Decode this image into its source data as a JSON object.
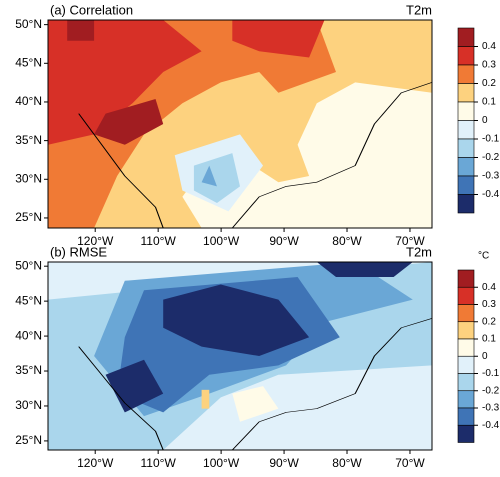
{
  "panels": [
    {
      "title": "(a) Correlation",
      "variable": "T2m",
      "xlim": [
        -127.5,
        -66.5
      ],
      "ylim": [
        23.7,
        50.6
      ],
      "xticks": [
        {
          "value": -120,
          "label": "120°W"
        },
        {
          "value": -110,
          "label": "110°W"
        },
        {
          "value": -100,
          "label": "100°W"
        },
        {
          "value": -90,
          "label": "90°W"
        },
        {
          "value": -80,
          "label": "80°W"
        },
        {
          "value": -70,
          "label": "70°W"
        }
      ],
      "yticks": [
        {
          "value": 25,
          "label": "25°N"
        },
        {
          "value": 30,
          "label": "30°N"
        },
        {
          "value": 35,
          "label": "35°N"
        },
        {
          "value": 40,
          "label": "40°N"
        },
        {
          "value": 45,
          "label": "45°N"
        },
        {
          "value": 50,
          "label": "50°N"
        }
      ],
      "colorbar": {
        "ticks": [
          0.4,
          0.3,
          0.2,
          0.1,
          0,
          -0.1,
          -0.2,
          -0.3,
          -0.4
        ],
        "colors": [
          "#a11d21",
          "#d73027",
          "#f07a35",
          "#fdd27f",
          "#fffbe8",
          "#e1f1fa",
          "#aad6ec",
          "#6aa7d6",
          "#3f74b6",
          "#1c2c6a"
        ]
      }
    },
    {
      "title": "(b) RMSE",
      "variable": "T2m",
      "unit": "°C",
      "xlim": [
        -127.5,
        -66.5
      ],
      "ylim": [
        23.7,
        50.6
      ],
      "xticks": [
        {
          "value": -120,
          "label": "120°W"
        },
        {
          "value": -110,
          "label": "110°W"
        },
        {
          "value": -100,
          "label": "100°W"
        },
        {
          "value": -90,
          "label": "90°W"
        },
        {
          "value": -80,
          "label": "80°W"
        },
        {
          "value": -70,
          "label": "70°W"
        }
      ],
      "yticks": [
        {
          "value": 25,
          "label": "25°N"
        },
        {
          "value": 30,
          "label": "30°N"
        },
        {
          "value": 35,
          "label": "35°N"
        },
        {
          "value": 40,
          "label": "40°N"
        },
        {
          "value": 45,
          "label": "45°N"
        },
        {
          "value": 50,
          "label": "50°N"
        }
      ],
      "colorbar": {
        "ticks": [
          0.4,
          0.3,
          0.2,
          0.1,
          0,
          -0.1,
          -0.2,
          -0.3,
          -0.4
        ],
        "colors": [
          "#a11d21",
          "#d73027",
          "#f07a35",
          "#fdd27f",
          "#fffbe8",
          "#e1f1fa",
          "#aad6ec",
          "#6aa7d6",
          "#3f74b6",
          "#1c2c6a"
        ]
      }
    }
  ]
}
